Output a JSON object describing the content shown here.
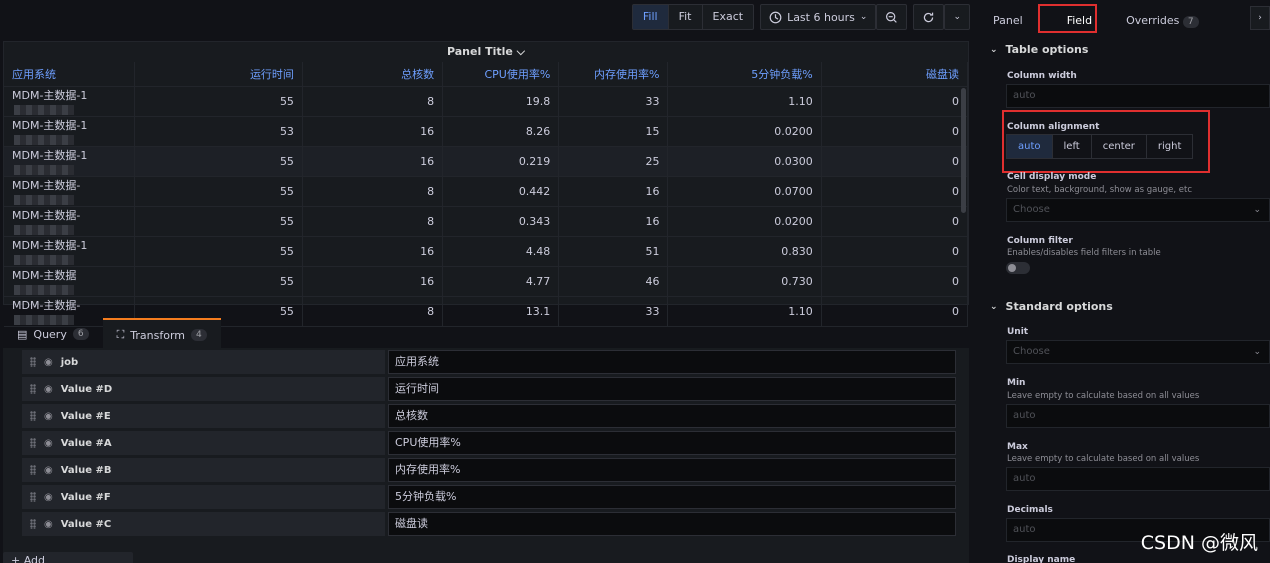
{
  "toolbar": {
    "fill": "Fill",
    "fit": "Fit",
    "exact": "Exact",
    "time_range": "Last 6 hours"
  },
  "panel": {
    "title": "Panel Title ⌵",
    "columns": [
      "应用系统",
      "运行时间",
      "总核数",
      "CPU使用率%",
      "内存使用率%",
      "5分钟负载%",
      "磁盘读"
    ],
    "rows": [
      {
        "app": "MDM-主数据-1",
        "run": "55",
        "cores": "8",
        "cpu": "19.8",
        "mem": "33",
        "load": "1.10",
        "disk": "0"
      },
      {
        "app": "MDM-主数据-1",
        "run": "53",
        "cores": "16",
        "cpu": "8.26",
        "mem": "15",
        "load": "0.0200",
        "disk": "0"
      },
      {
        "app": "MDM-主数据-1",
        "run": "55",
        "cores": "16",
        "cpu": "0.219",
        "mem": "25",
        "load": "0.0300",
        "disk": "0"
      },
      {
        "app": "MDM-主数据-",
        "run": "55",
        "cores": "8",
        "cpu": "0.442",
        "mem": "16",
        "load": "0.0700",
        "disk": "0"
      },
      {
        "app": "MDM-主数据-",
        "run": "55",
        "cores": "8",
        "cpu": "0.343",
        "mem": "16",
        "load": "0.0200",
        "disk": "0"
      },
      {
        "app": "MDM-主数据-1",
        "run": "55",
        "cores": "16",
        "cpu": "4.48",
        "mem": "51",
        "load": "0.830",
        "disk": "0"
      },
      {
        "app": "MDM-主数据",
        "run": "55",
        "cores": "16",
        "cpu": "4.77",
        "mem": "46",
        "load": "0.730",
        "disk": "0"
      },
      {
        "app": "MDM-主数据-",
        "run": "55",
        "cores": "8",
        "cpu": "13.1",
        "mem": "33",
        "load": "1.10",
        "disk": "0"
      }
    ]
  },
  "tabs": {
    "query": "Query",
    "query_count": "6",
    "transform": "Transform",
    "transform_count": "4"
  },
  "transforms": [
    {
      "field": "job",
      "rename": "应用系统"
    },
    {
      "field": "Value #D",
      "rename": "运行时间"
    },
    {
      "field": "Value #E",
      "rename": "总核数"
    },
    {
      "field": "Value #A",
      "rename": "CPU使用率%"
    },
    {
      "field": "Value #B",
      "rename": "内存使用率%"
    },
    {
      "field": "Value #F",
      "rename": "5分钟负载%"
    },
    {
      "field": "Value #C",
      "rename": "磁盘读"
    }
  ],
  "add_transformation": "+ Add transformation",
  "side": {
    "tabs": {
      "panel": "Panel",
      "field": "Field",
      "overrides": "Overrides",
      "overrides_count": "7"
    },
    "table_options": "Table options",
    "column_width": {
      "label": "Column width",
      "placeholder": "auto"
    },
    "column_alignment": {
      "label": "Column alignment",
      "options": [
        "auto",
        "left",
        "center",
        "right"
      ]
    },
    "cell_display": {
      "label": "Cell display mode",
      "desc": "Color text, background, show as gauge, etc",
      "placeholder": "Choose"
    },
    "column_filter": {
      "label": "Column filter",
      "desc": "Enables/disables field filters in table"
    },
    "standard_options": "Standard options",
    "unit": {
      "label": "Unit",
      "placeholder": "Choose"
    },
    "min": {
      "label": "Min",
      "desc": "Leave empty to calculate based on all values",
      "placeholder": "auto"
    },
    "max": {
      "label": "Max",
      "desc": "Leave empty to calculate based on all values",
      "placeholder": "auto"
    },
    "decimals": {
      "label": "Decimals",
      "placeholder": "auto"
    },
    "display_name": {
      "label": "Display name"
    }
  },
  "watermark": "CSDN @微风",
  "colors": {
    "accent": "#6e9fff",
    "highlight_box": "#e02f2f",
    "tab_underline": "#f57d1f"
  }
}
